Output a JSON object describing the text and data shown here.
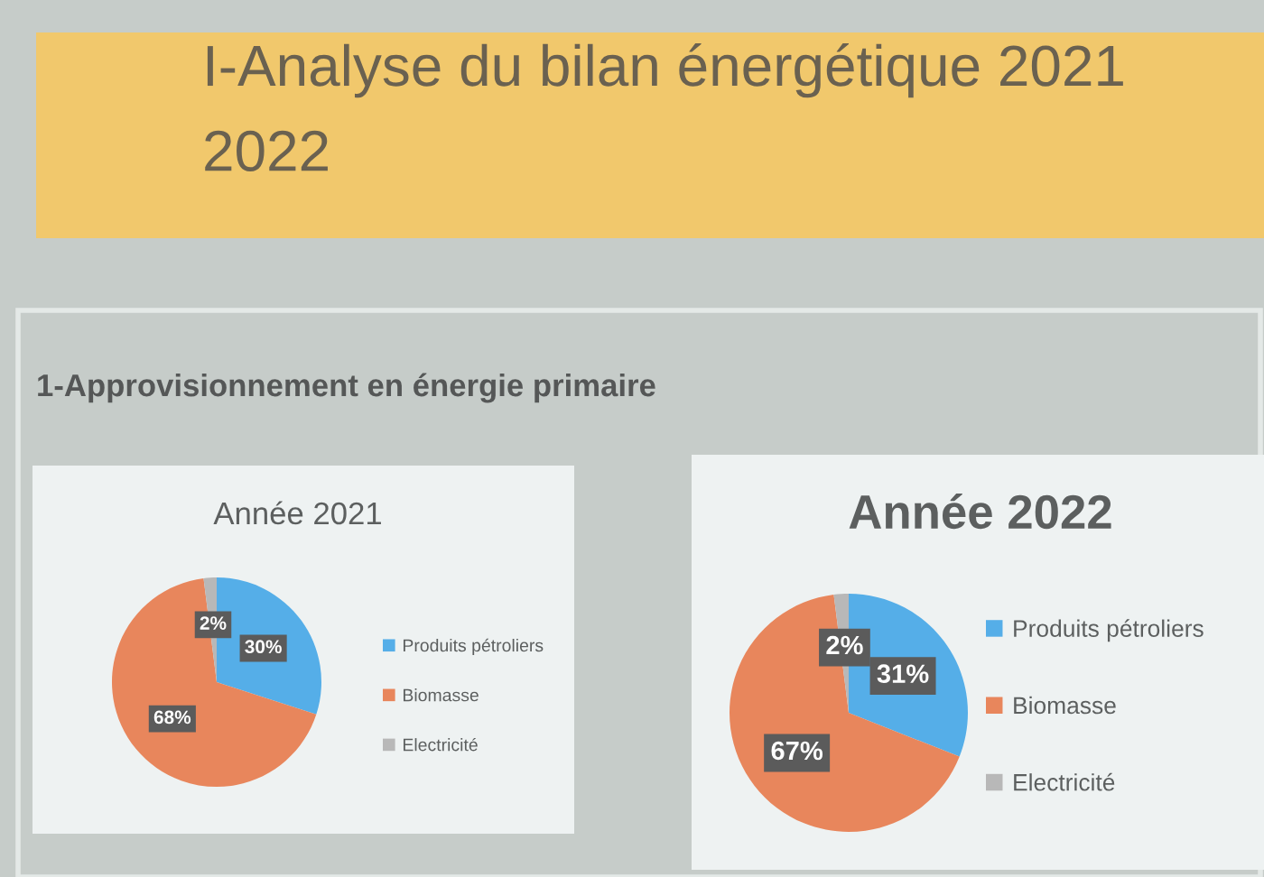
{
  "chart_data": [
    {
      "type": "other",
      "title": "I-Analyse du bilan énergétique 2021 2022",
      "subtitle": "1-Approvisionnement en énergie primaire"
    },
    {
      "type": "pie",
      "title": "Année 2021",
      "categories": [
        "Produits pétroliers",
        "Biomasse",
        "Electricité"
      ],
      "values": [
        30,
        68,
        2
      ],
      "colors": [
        "#55aee8",
        "#e8865c",
        "#b8b8b8"
      ],
      "value_labels": [
        "30%",
        "68%",
        "2%"
      ],
      "legend": "right"
    },
    {
      "type": "pie",
      "title": "Année 2022",
      "categories": [
        "Produits pétroliers",
        "Biomasse",
        "Electricité"
      ],
      "values": [
        31,
        67,
        2
      ],
      "colors": [
        "#55aee8",
        "#e8865c",
        "#b8b8b8"
      ],
      "value_labels": [
        "31%",
        "67%",
        "2%"
      ],
      "legend": "right"
    }
  ]
}
